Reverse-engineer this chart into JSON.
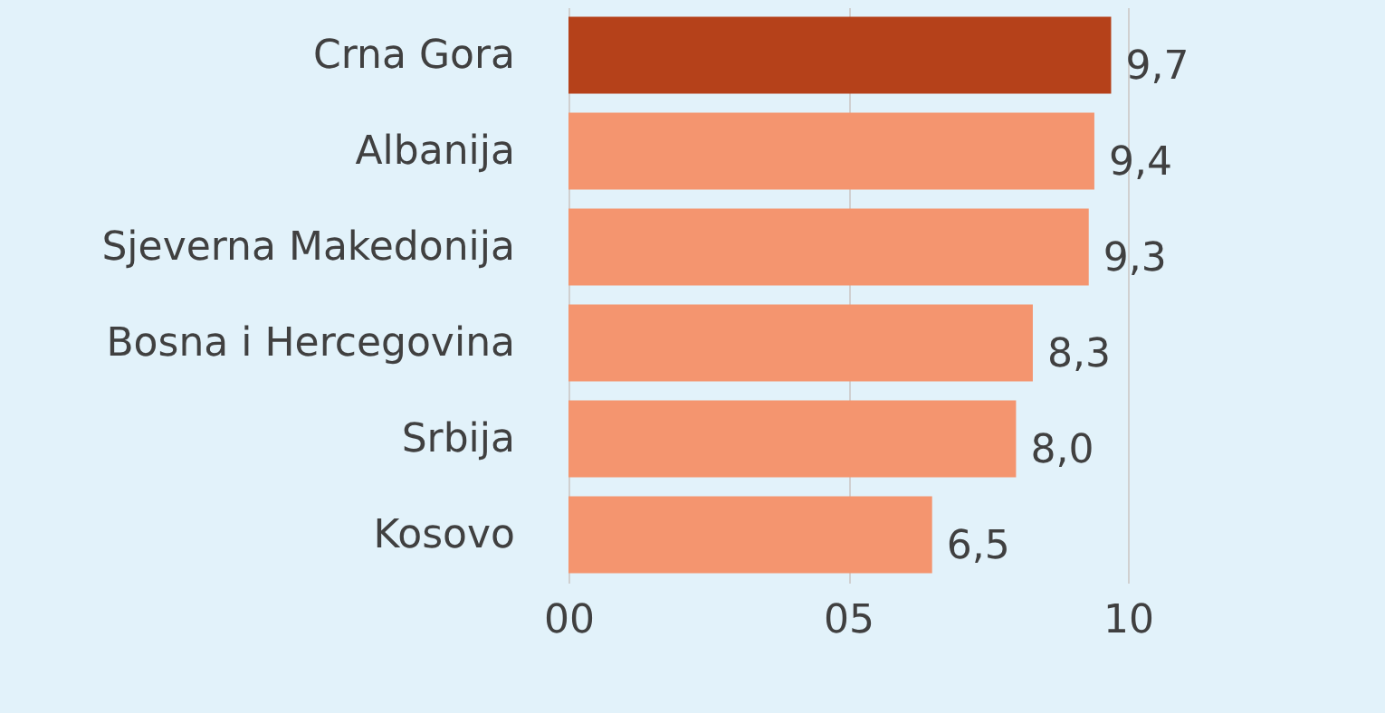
{
  "chart_data": {
    "type": "bar",
    "orientation": "horizontal",
    "categories": [
      "Crna Gora",
      "Albanija",
      "Sjeverna Makedonija",
      "Bosna i Hercegovina",
      "Srbija",
      "Kosovo"
    ],
    "values": [
      9.7,
      9.4,
      9.3,
      8.3,
      8.0,
      6.5
    ],
    "colors": [
      "#b5411a",
      "#f4956f",
      "#f4956f",
      "#f4956f",
      "#f4956f",
      "#f4956f"
    ],
    "value_labels": [
      "9,7",
      "9,4",
      "9,3",
      "8,3",
      "8,0",
      "6,5"
    ],
    "xlim": [
      0,
      10
    ],
    "xticks": [
      {
        "value": 0,
        "label": "00"
      },
      {
        "value": 5,
        "label": "05"
      },
      {
        "value": 10,
        "label": "10"
      }
    ],
    "grid": "x"
  }
}
